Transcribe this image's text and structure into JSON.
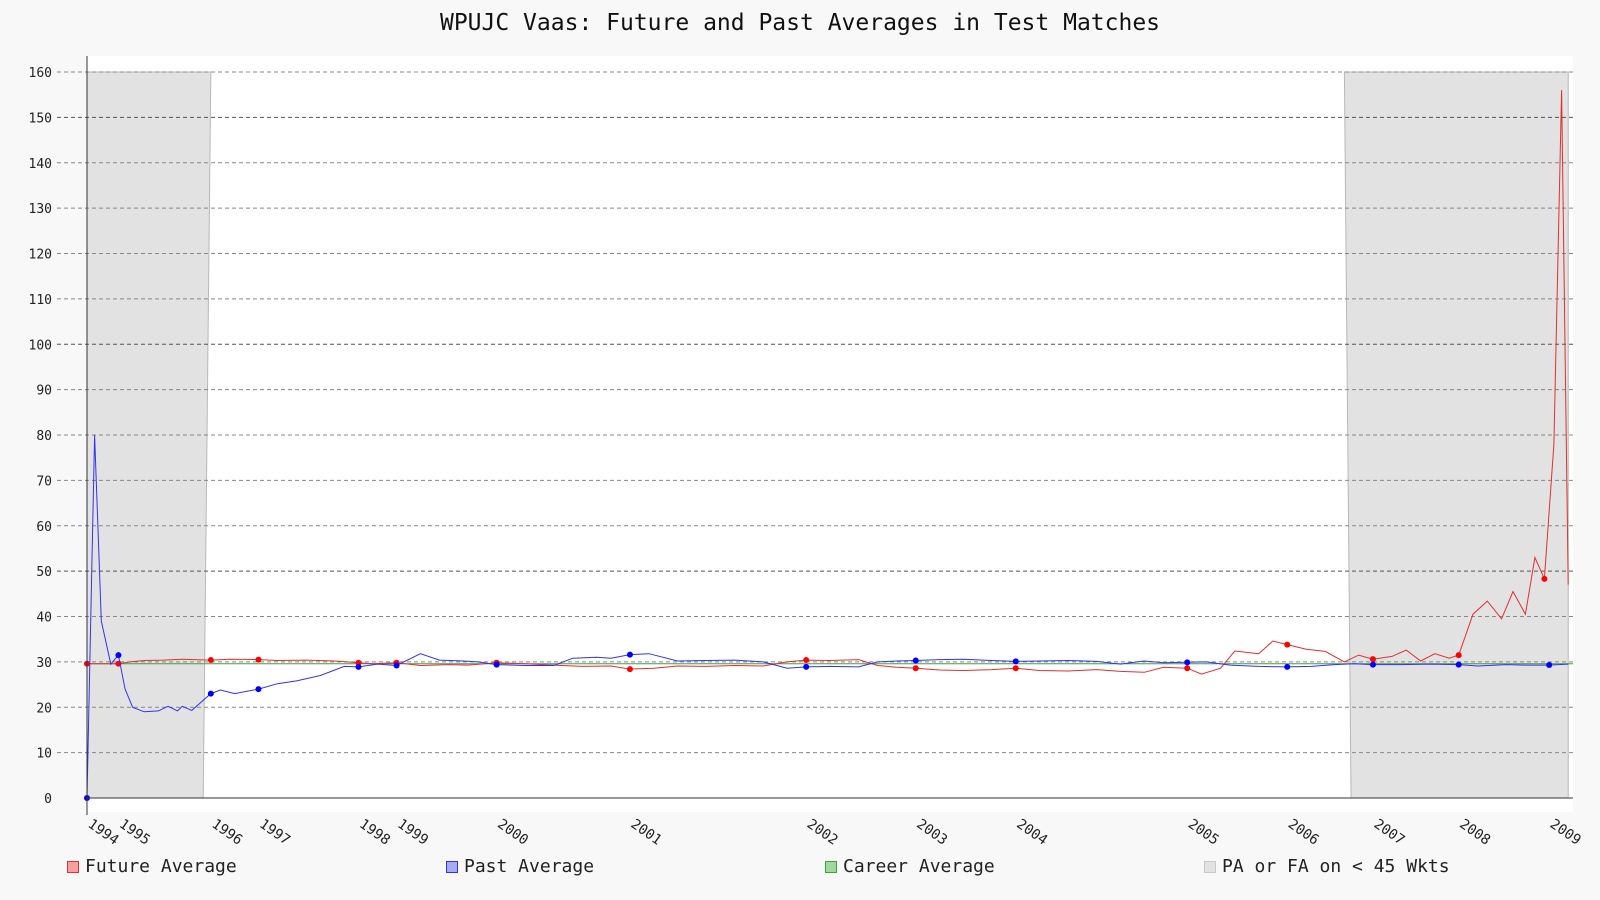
{
  "chart_data": {
    "type": "line",
    "title": "WPUJC Vaas: Future and Past Averages in Test Matches",
    "xlabel": "",
    "ylabel": "",
    "ylim": [
      0,
      160
    ],
    "yticks": [
      0,
      10,
      20,
      30,
      40,
      50,
      60,
      70,
      80,
      90,
      100,
      110,
      120,
      130,
      140,
      150,
      160
    ],
    "xlim": [
      1994.0,
      2009.6
    ],
    "xticks": [
      {
        "label": "1994",
        "x": 1994.0
      },
      {
        "label": "1995",
        "x": 1994.33
      },
      {
        "label": "1996",
        "x": 1995.3
      },
      {
        "label": "1997",
        "x": 1995.8
      },
      {
        "label": "1998",
        "x": 1996.85
      },
      {
        "label": "1999",
        "x": 1997.25
      },
      {
        "label": "2000",
        "x": 1998.3
      },
      {
        "label": "2001",
        "x": 1999.7
      },
      {
        "label": "2002",
        "x": 2001.55
      },
      {
        "label": "2003",
        "x": 2002.7
      },
      {
        "label": "2004",
        "x": 2003.75
      },
      {
        "label": "2005",
        "x": 2005.55
      },
      {
        "label": "2006",
        "x": 2006.6
      },
      {
        "label": "2007",
        "x": 2007.5
      },
      {
        "label": "2008",
        "x": 2008.4
      },
      {
        "label": "2009",
        "x": 2009.35
      }
    ],
    "grid": true,
    "legend_position": "bottom",
    "shaded_regions": [
      {
        "x_top": [
          1994.0,
          1995.3
        ],
        "x_bottom": [
          1994.0,
          1995.22
        ]
      },
      {
        "x_top": [
          2007.2,
          2009.55
        ],
        "x_bottom": [
          2007.27,
          2009.55
        ]
      }
    ],
    "reference_line": {
      "name": "Career Average",
      "y": 29.6
    },
    "series": [
      {
        "name": "Future Average",
        "color": "#e03030",
        "marker_color": "#ff0000",
        "points": [
          [
            1994.0,
            29.6
          ],
          [
            1994.1,
            29.6
          ],
          [
            1994.25,
            29.6
          ],
          [
            1994.33,
            29.6
          ],
          [
            1994.45,
            30.0
          ],
          [
            1994.6,
            30.3
          ],
          [
            1994.8,
            30.4
          ],
          [
            1995.0,
            30.6
          ],
          [
            1995.3,
            30.4
          ],
          [
            1995.5,
            30.6
          ],
          [
            1995.8,
            30.5
          ],
          [
            1996.0,
            30.3
          ],
          [
            1996.3,
            30.4
          ],
          [
            1996.6,
            30.2
          ],
          [
            1996.85,
            29.8
          ],
          [
            1997.0,
            29.6
          ],
          [
            1997.25,
            29.8
          ],
          [
            1997.5,
            29.2
          ],
          [
            1997.8,
            29.4
          ],
          [
            1998.0,
            29.3
          ],
          [
            1998.3,
            29.8
          ],
          [
            1998.6,
            29.6
          ],
          [
            1998.9,
            29.3
          ],
          [
            1999.2,
            29.0
          ],
          [
            1999.5,
            29.1
          ],
          [
            1999.7,
            28.4
          ],
          [
            1999.95,
            28.6
          ],
          [
            2000.2,
            29.1
          ],
          [
            2000.5,
            29.0
          ],
          [
            2000.8,
            29.2
          ],
          [
            2001.1,
            29.1
          ],
          [
            2001.35,
            30.0
          ],
          [
            2001.55,
            30.4
          ],
          [
            2001.8,
            30.3
          ],
          [
            2002.1,
            30.5
          ],
          [
            2002.3,
            29.2
          ],
          [
            2002.5,
            28.8
          ],
          [
            2002.7,
            28.6
          ],
          [
            2002.95,
            28.2
          ],
          [
            2003.2,
            28.1
          ],
          [
            2003.5,
            28.3
          ],
          [
            2003.75,
            28.6
          ],
          [
            2004.0,
            28.1
          ],
          [
            2004.3,
            28.0
          ],
          [
            2004.6,
            28.3
          ],
          [
            2004.85,
            27.9
          ],
          [
            2005.1,
            27.7
          ],
          [
            2005.3,
            28.8
          ],
          [
            2005.55,
            28.6
          ],
          [
            2005.7,
            27.3
          ],
          [
            2005.9,
            28.6
          ],
          [
            2006.05,
            32.4
          ],
          [
            2006.3,
            31.8
          ],
          [
            2006.45,
            34.6
          ],
          [
            2006.6,
            33.8
          ],
          [
            2006.8,
            32.8
          ],
          [
            2007.0,
            32.3
          ],
          [
            2007.2,
            30.0
          ],
          [
            2007.35,
            31.5
          ],
          [
            2007.5,
            30.6
          ],
          [
            2007.7,
            31.2
          ],
          [
            2007.85,
            32.6
          ],
          [
            2008.0,
            30.2
          ],
          [
            2008.15,
            31.8
          ],
          [
            2008.3,
            30.8
          ],
          [
            2008.4,
            31.5
          ],
          [
            2008.55,
            40.5
          ],
          [
            2008.7,
            43.4
          ],
          [
            2008.85,
            39.5
          ],
          [
            2008.97,
            45.5
          ],
          [
            2009.1,
            40.5
          ],
          [
            2009.2,
            53.0
          ],
          [
            2009.3,
            48.3
          ],
          [
            2009.4,
            78.0
          ],
          [
            2009.48,
            156.0
          ],
          [
            2009.55,
            47.0
          ]
        ],
        "markers": [
          [
            1994.0,
            29.6
          ],
          [
            1994.33,
            29.6
          ],
          [
            1995.3,
            30.4
          ],
          [
            1995.8,
            30.5
          ],
          [
            1996.85,
            29.8
          ],
          [
            1997.25,
            29.8
          ],
          [
            1998.3,
            29.8
          ],
          [
            1999.7,
            28.4
          ],
          [
            2001.55,
            30.4
          ],
          [
            2002.7,
            28.6
          ],
          [
            2003.75,
            28.6
          ],
          [
            2005.55,
            28.6
          ],
          [
            2006.6,
            33.8
          ],
          [
            2007.5,
            30.6
          ],
          [
            2008.4,
            31.5
          ],
          [
            2009.3,
            48.3
          ]
        ]
      },
      {
        "name": "Past Average",
        "color": "#3333ee",
        "marker_color": "#0000ff",
        "points": [
          [
            1994.0,
            0.0
          ],
          [
            1994.08,
            80.0
          ],
          [
            1994.15,
            39.0
          ],
          [
            1994.25,
            29.5
          ],
          [
            1994.33,
            31.5
          ],
          [
            1994.4,
            24.0
          ],
          [
            1994.48,
            20.0
          ],
          [
            1994.6,
            19.0
          ],
          [
            1994.75,
            19.2
          ],
          [
            1994.85,
            20.2
          ],
          [
            1994.95,
            19.2
          ],
          [
            1995.0,
            20.2
          ],
          [
            1995.1,
            19.3
          ],
          [
            1995.3,
            23.0
          ],
          [
            1995.4,
            23.8
          ],
          [
            1995.55,
            23.0
          ],
          [
            1995.8,
            24.0
          ],
          [
            1996.0,
            25.2
          ],
          [
            1996.2,
            25.8
          ],
          [
            1996.45,
            27.0
          ],
          [
            1996.7,
            29.0
          ],
          [
            1996.85,
            28.9
          ],
          [
            1997.05,
            29.5
          ],
          [
            1997.25,
            29.2
          ],
          [
            1997.5,
            31.8
          ],
          [
            1997.7,
            30.4
          ],
          [
            1997.95,
            30.2
          ],
          [
            1998.1,
            30.0
          ],
          [
            1998.3,
            29.4
          ],
          [
            1998.6,
            29.2
          ],
          [
            1998.9,
            29.2
          ],
          [
            1999.1,
            30.8
          ],
          [
            1999.35,
            31.0
          ],
          [
            1999.5,
            30.8
          ],
          [
            1999.7,
            31.6
          ],
          [
            1999.9,
            31.8
          ],
          [
            2000.2,
            30.2
          ],
          [
            2000.5,
            30.3
          ],
          [
            2000.8,
            30.4
          ],
          [
            2001.1,
            30.0
          ],
          [
            2001.35,
            28.6
          ],
          [
            2001.55,
            28.9
          ],
          [
            2001.8,
            29.0
          ],
          [
            2002.1,
            28.9
          ],
          [
            2002.3,
            30.0
          ],
          [
            2002.5,
            30.2
          ],
          [
            2002.7,
            30.3
          ],
          [
            2002.95,
            30.5
          ],
          [
            2003.2,
            30.6
          ],
          [
            2003.5,
            30.3
          ],
          [
            2003.75,
            30.1
          ],
          [
            2004.0,
            30.2
          ],
          [
            2004.3,
            30.3
          ],
          [
            2004.6,
            30.1
          ],
          [
            2004.85,
            29.5
          ],
          [
            2005.1,
            30.2
          ],
          [
            2005.3,
            29.8
          ],
          [
            2005.55,
            29.9
          ],
          [
            2005.75,
            30.0
          ],
          [
            2006.0,
            29.3
          ],
          [
            2006.3,
            29.0
          ],
          [
            2006.6,
            28.9
          ],
          [
            2006.85,
            29.0
          ],
          [
            2007.1,
            29.4
          ],
          [
            2007.3,
            29.6
          ],
          [
            2007.5,
            29.4
          ],
          [
            2007.8,
            29.4
          ],
          [
            2008.1,
            29.5
          ],
          [
            2008.4,
            29.4
          ],
          [
            2008.6,
            29.1
          ],
          [
            2008.9,
            29.4
          ],
          [
            2009.1,
            29.3
          ],
          [
            2009.35,
            29.3
          ],
          [
            2009.55,
            29.5
          ]
        ],
        "markers": [
          [
            1994.0,
            0.0
          ],
          [
            1994.33,
            31.5
          ],
          [
            1995.3,
            23.0
          ],
          [
            1995.8,
            24.0
          ],
          [
            1996.85,
            28.9
          ],
          [
            1997.25,
            29.2
          ],
          [
            1998.3,
            29.4
          ],
          [
            1999.7,
            31.6
          ],
          [
            2001.55,
            28.9
          ],
          [
            2002.7,
            30.3
          ],
          [
            2003.75,
            30.1
          ],
          [
            2005.55,
            29.9
          ],
          [
            2006.6,
            28.9
          ],
          [
            2007.5,
            29.4
          ],
          [
            2008.4,
            29.4
          ],
          [
            2009.35,
            29.3
          ]
        ]
      }
    ],
    "legend": [
      {
        "label": "Future Average",
        "fill": "#f4a0a0",
        "stroke": "#e03030"
      },
      {
        "label": "Past Average",
        "fill": "#aaaaf4",
        "stroke": "#3333ee"
      },
      {
        "label": "Career Average",
        "fill": "#a0d8a0",
        "stroke": "#40a040"
      },
      {
        "label": "PA or FA on < 45 Wkts",
        "fill": "#e2e2e2",
        "stroke": "#c8c8c8"
      }
    ]
  }
}
